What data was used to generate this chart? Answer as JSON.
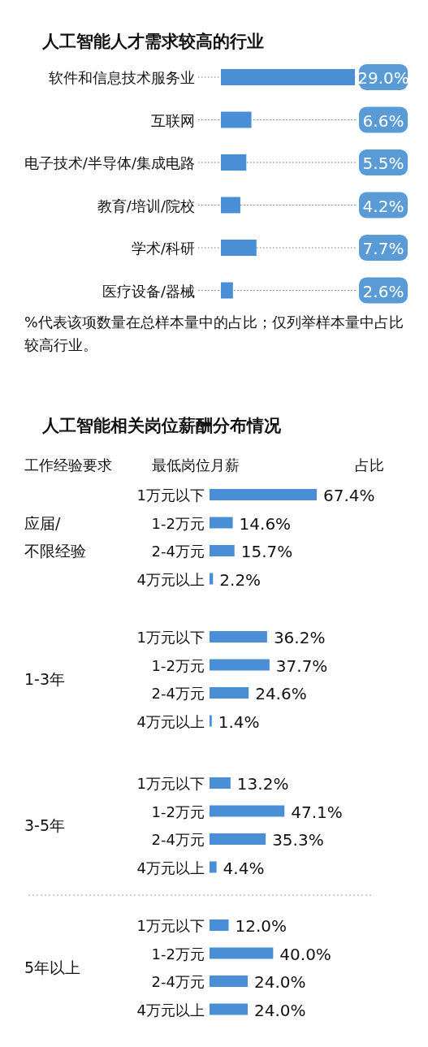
{
  "chart_data": [
    {
      "type": "bar",
      "orientation": "horizontal",
      "title": "人工智能人才需求较高的行业",
      "categories": [
        "软件和信息技术服务业",
        "互联网",
        "电子技术/半导体/集成电路",
        "教育/培训/院校",
        "学术/科研",
        "医疗设备/器械"
      ],
      "values": [
        29.0,
        6.6,
        5.5,
        4.2,
        7.7,
        2.6
      ],
      "value_labels": [
        "29.0%",
        "6.6%",
        "5.5%",
        "4.2%",
        "7.7%",
        "2.6%"
      ],
      "color": "#4a8fd6",
      "annotations": [
        "%代表该项数量在总样本量中的占比；仅列举样本量中占比较高行业。"
      ]
    },
    {
      "type": "bar",
      "orientation": "horizontal",
      "title": "人工智能相关岗位薪酬分布情况",
      "annotations": [
        "工作经验要求",
        "最低岗位月薪",
        "占比"
      ],
      "ylabel": "应届/不限经验",
      "categories": [
        "1万元以下",
        "1-2万元",
        "2-4万元",
        "4万元以上"
      ],
      "values": [
        67.4,
        14.6,
        15.7,
        2.2
      ],
      "value_labels": [
        "67.4%",
        "14.6%",
        "15.7%",
        "2.2%"
      ],
      "color": "#4a8fd6"
    },
    {
      "type": "bar",
      "orientation": "horizontal",
      "ylabel": "1-3年",
      "categories": [
        "1万元以下",
        "1-2万元",
        "2-4万元",
        "4万元以上"
      ],
      "values": [
        36.2,
        37.7,
        24.6,
        1.4
      ],
      "value_labels": [
        "36.2%",
        "37.7%",
        "24.6%",
        "1.4%"
      ],
      "color": "#4a8fd6"
    },
    {
      "type": "bar",
      "orientation": "horizontal",
      "ylabel": "3-5年",
      "categories": [
        "1万元以下",
        "1-2万元",
        "2-4万元",
        "4万元以上"
      ],
      "values": [
        13.2,
        47.1,
        35.3,
        4.4
      ],
      "value_labels": [
        "13.2%",
        "47.1%",
        "35.3%",
        "4.4%"
      ],
      "color": "#4a8fd6"
    },
    {
      "type": "bar",
      "orientation": "horizontal",
      "ylabel": "5年以上",
      "categories": [
        "1万元以下",
        "1-2万元",
        "2-4万元",
        "4万元以上"
      ],
      "values": [
        12.0,
        40.0,
        24.0,
        24.0
      ],
      "value_labels": [
        "12.0%",
        "40.0%",
        "24.0%",
        "24.0%"
      ],
      "color": "#4a8fd6"
    }
  ]
}
